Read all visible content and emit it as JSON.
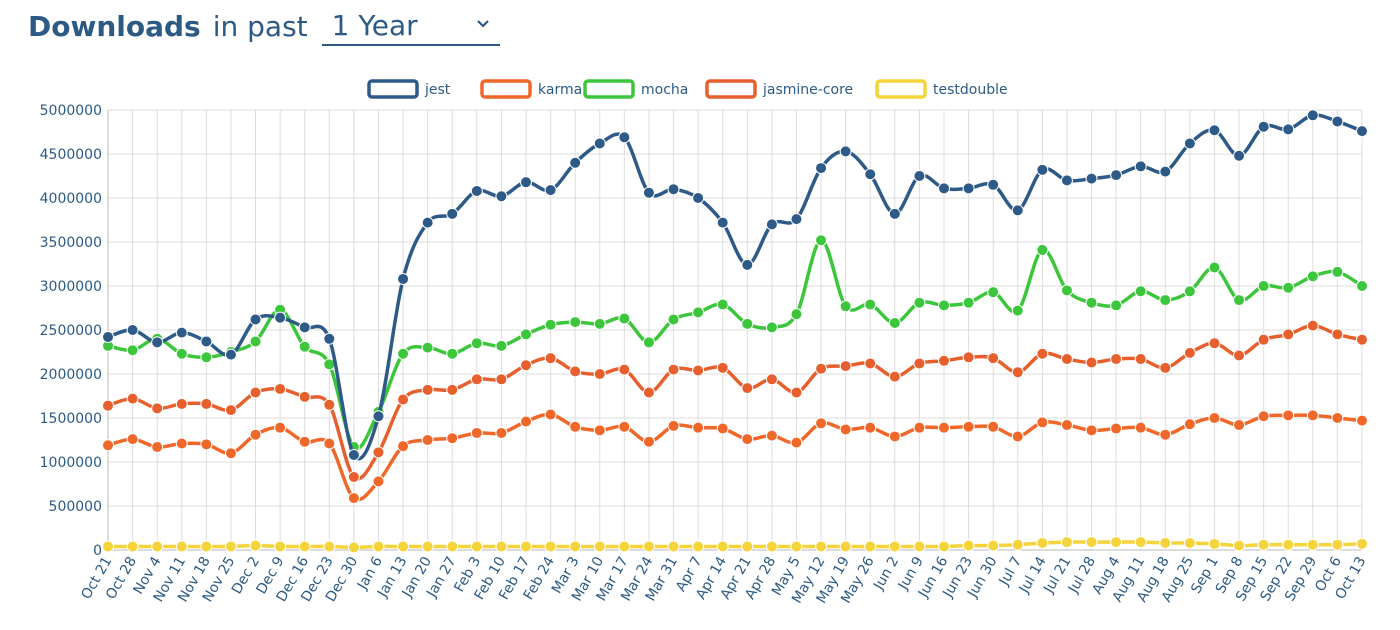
{
  "header": {
    "title_bold": "Downloads",
    "title_rest": "in past",
    "period_value": "1 Year"
  },
  "colors": {
    "jest": "#2e5a88",
    "karma": "#f0672a",
    "mocha": "#3cc63c",
    "jasmine-core": "#e85f2e",
    "testdouble": "#f4d43a",
    "grid": "#dddddd",
    "axis_text": "#2c5a85"
  },
  "chart_data": {
    "type": "line",
    "ylim": [
      0,
      5000000
    ],
    "yticks": [
      0,
      500000,
      1000000,
      1500000,
      2000000,
      2500000,
      3000000,
      3500000,
      4000000,
      4500000,
      5000000
    ],
    "legend_position": "top-center",
    "grid": true,
    "categories": [
      "Oct 21",
      "Oct 28",
      "Nov 4",
      "Nov 11",
      "Nov 18",
      "Nov 25",
      "Dec 2",
      "Dec 9",
      "Dec 16",
      "Dec 23",
      "Dec 30",
      "Jan 6",
      "Jan 13",
      "Jan 20",
      "Jan 27",
      "Feb 3",
      "Feb 10",
      "Feb 17",
      "Feb 24",
      "Mar 3",
      "Mar 10",
      "Mar 17",
      "Mar 24",
      "Mar 31",
      "Apr 7",
      "Apr 14",
      "Apr 21",
      "Apr 28",
      "May 5",
      "May 12",
      "May 19",
      "May 26",
      "Jun 2",
      "Jun 9",
      "Jun 16",
      "Jun 23",
      "Jun 30",
      "Jul 7",
      "Jul 14",
      "Jul 21",
      "Jul 28",
      "Aug 4",
      "Aug 11",
      "Aug 18",
      "Aug 25",
      "Sep 1",
      "Sep 8",
      "Sep 15",
      "Sep 22",
      "Sep 29",
      "Oct 6",
      "Oct 13"
    ],
    "series": [
      {
        "name": "jest",
        "values": [
          2420000,
          2500000,
          2360000,
          2470000,
          2370000,
          2220000,
          2620000,
          2640000,
          2530000,
          2400000,
          1080000,
          1520000,
          3080000,
          3720000,
          3820000,
          4080000,
          4020000,
          4180000,
          4090000,
          4400000,
          4620000,
          4690000,
          4060000,
          4100000,
          4000000,
          3720000,
          3240000,
          3700000,
          3760000,
          4340000,
          4530000,
          4270000,
          3820000,
          4250000,
          4110000,
          4110000,
          4150000,
          3860000,
          4320000,
          4200000,
          4220000,
          4260000,
          4360000,
          4300000,
          4620000,
          4770000,
          4480000,
          4810000,
          4780000,
          4940000,
          4870000,
          4760000
        ]
      },
      {
        "name": "karma",
        "values": [
          1190000,
          1260000,
          1170000,
          1210000,
          1200000,
          1100000,
          1310000,
          1390000,
          1230000,
          1210000,
          590000,
          780000,
          1180000,
          1250000,
          1270000,
          1330000,
          1330000,
          1460000,
          1540000,
          1400000,
          1360000,
          1400000,
          1230000,
          1410000,
          1390000,
          1380000,
          1260000,
          1300000,
          1220000,
          1440000,
          1370000,
          1390000,
          1290000,
          1390000,
          1390000,
          1400000,
          1400000,
          1290000,
          1450000,
          1420000,
          1360000,
          1380000,
          1390000,
          1310000,
          1430000,
          1500000,
          1420000,
          1520000,
          1530000,
          1530000,
          1500000,
          1470000
        ]
      },
      {
        "name": "mocha",
        "values": [
          2320000,
          2270000,
          2400000,
          2230000,
          2190000,
          2250000,
          2370000,
          2730000,
          2310000,
          2110000,
          1170000,
          1570000,
          2230000,
          2300000,
          2230000,
          2350000,
          2320000,
          2450000,
          2560000,
          2590000,
          2570000,
          2630000,
          2360000,
          2620000,
          2700000,
          2790000,
          2570000,
          2530000,
          2680000,
          3520000,
          2770000,
          2790000,
          2580000,
          2810000,
          2780000,
          2810000,
          2930000,
          2720000,
          3410000,
          2950000,
          2810000,
          2780000,
          2940000,
          2840000,
          2940000,
          3210000,
          2840000,
          3000000,
          2980000,
          3110000,
          3160000,
          3000000
        ]
      },
      {
        "name": "jasmine-core",
        "values": [
          1640000,
          1720000,
          1610000,
          1660000,
          1660000,
          1590000,
          1790000,
          1830000,
          1740000,
          1650000,
          830000,
          1110000,
          1710000,
          1820000,
          1820000,
          1940000,
          1940000,
          2100000,
          2180000,
          2030000,
          2000000,
          2050000,
          1790000,
          2050000,
          2040000,
          2070000,
          1840000,
          1940000,
          1790000,
          2060000,
          2090000,
          2120000,
          1970000,
          2120000,
          2150000,
          2190000,
          2180000,
          2020000,
          2230000,
          2170000,
          2130000,
          2170000,
          2170000,
          2070000,
          2240000,
          2350000,
          2210000,
          2390000,
          2450000,
          2550000,
          2450000,
          2390000
        ]
      },
      {
        "name": "testdouble",
        "values": [
          40000,
          40000,
          40000,
          40000,
          40000,
          40000,
          50000,
          40000,
          40000,
          40000,
          30000,
          40000,
          40000,
          40000,
          40000,
          40000,
          40000,
          40000,
          40000,
          40000,
          40000,
          40000,
          40000,
          40000,
          40000,
          40000,
          40000,
          40000,
          40000,
          40000,
          40000,
          40000,
          40000,
          40000,
          40000,
          50000,
          50000,
          60000,
          80000,
          90000,
          90000,
          90000,
          90000,
          80000,
          80000,
          70000,
          50000,
          60000,
          60000,
          60000,
          60000,
          70000
        ]
      }
    ]
  }
}
